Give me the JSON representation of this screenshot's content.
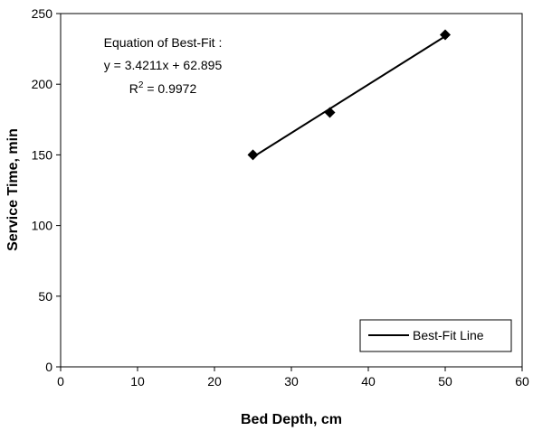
{
  "chart_data": {
    "type": "scatter",
    "title": "",
    "xlabel": "Bed Depth, cm",
    "ylabel": "Service Time, min",
    "xlim": [
      0,
      60
    ],
    "ylim": [
      0,
      250
    ],
    "xticks": [
      0,
      10,
      20,
      30,
      40,
      50,
      60
    ],
    "yticks": [
      0,
      50,
      100,
      150,
      200,
      250
    ],
    "grid": false,
    "points": {
      "x": [
        25,
        35,
        50
      ],
      "y": [
        150,
        180,
        235
      ],
      "marker": "diamond",
      "color": "#000000"
    },
    "fit_line": {
      "name": "Best-Fit Line",
      "slope": 3.4211,
      "intercept": 62.895,
      "x_range": [
        25,
        50
      ],
      "color": "#000000"
    },
    "annotation": {
      "line1": "Equation of Best-Fit :",
      "line2": "y = 3.4211x + 62.895",
      "line3_prefix": "R",
      "line3_sup": "2",
      "line3_suffix": " = 0.9972"
    },
    "legend": {
      "placement": "bottom-right",
      "entries": [
        "Best-Fit Line"
      ]
    }
  }
}
